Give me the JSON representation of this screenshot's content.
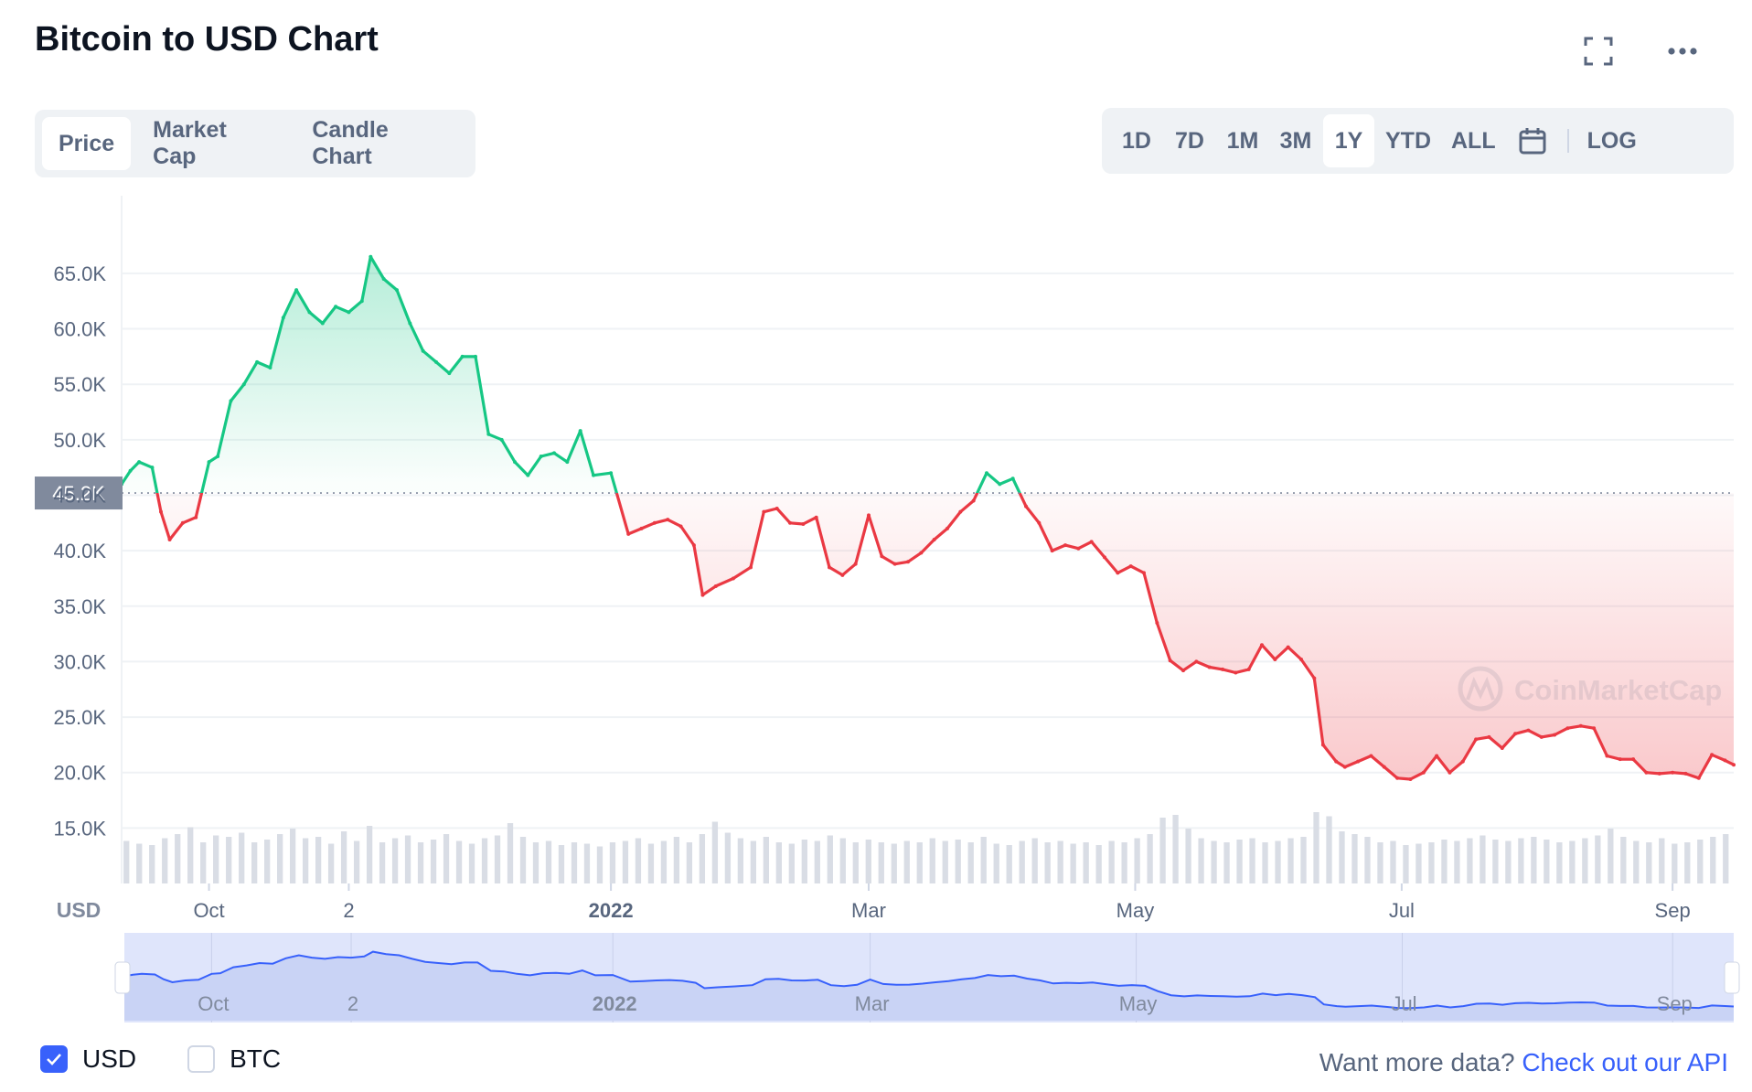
{
  "header": {
    "title": "Bitcoin to USD Chart"
  },
  "icons": {
    "fullscreen": "fullscreen-icon",
    "more": "more-icon",
    "calendar": "calendar-icon",
    "check": "checkmark-icon",
    "watermark": "coinmarketcap-logo"
  },
  "tabs": [
    {
      "label": "Price",
      "active": true
    },
    {
      "label": "Market Cap",
      "active": false
    },
    {
      "label": "Candle Chart",
      "active": false
    }
  ],
  "ranges": [
    {
      "label": "1D",
      "active": false
    },
    {
      "label": "7D",
      "active": false
    },
    {
      "label": "1M",
      "active": false
    },
    {
      "label": "3M",
      "active": false
    },
    {
      "label": "1Y",
      "active": true
    },
    {
      "label": "YTD",
      "active": false
    },
    {
      "label": "ALL",
      "active": false
    }
  ],
  "log_label": "LOG",
  "legend": {
    "usd": {
      "label": "USD",
      "checked": true
    },
    "btc": {
      "label": "BTC",
      "checked": false
    }
  },
  "footer": {
    "prompt": "Want more data?",
    "link": "Check out our API"
  },
  "watermark": "CoinMarketCap",
  "colors": {
    "up": "#16c784",
    "down": "#ea3943",
    "accent": "#3861fb",
    "baseline_badge": "#808a9d"
  },
  "chart_data": {
    "type": "line",
    "ylabel": "USD",
    "y_ticks": [
      "15.0K",
      "20.0K",
      "25.0K",
      "30.0K",
      "35.0K",
      "40.0K",
      "45.0K",
      "50.0K",
      "55.0K",
      "60.0K",
      "65.0K"
    ],
    "ylim": [
      10000,
      72000
    ],
    "x_ticks": [
      {
        "label": "Oct",
        "date": "2021-10-01",
        "bold": false
      },
      {
        "label": "2",
        "date": "2021-11-02",
        "bold": false
      },
      {
        "label": "2022",
        "date": "2022-01-01",
        "bold": true
      },
      {
        "label": "Mar",
        "date": "2022-03-01",
        "bold": false
      },
      {
        "label": "May",
        "date": "2022-05-01",
        "bold": false
      },
      {
        "label": "Jul",
        "date": "2022-07-01",
        "bold": false
      },
      {
        "label": "Sep",
        "date": "2022-09-01",
        "bold": false
      }
    ],
    "xlim": [
      "2021-09-11",
      "2022-09-15"
    ],
    "baseline": {
      "value": 45200,
      "label": "45.2K"
    },
    "grid": true,
    "series": [
      {
        "x": [
          "2021-09-11",
          "2021-09-13",
          "2021-09-15",
          "2021-09-18",
          "2021-09-20",
          "2021-09-22",
          "2021-09-25",
          "2021-09-28",
          "2021-10-01",
          "2021-10-03",
          "2021-10-06",
          "2021-10-09",
          "2021-10-12",
          "2021-10-15",
          "2021-10-18",
          "2021-10-21",
          "2021-10-24",
          "2021-10-27",
          "2021-10-30",
          "2021-11-02",
          "2021-11-05",
          "2021-11-07",
          "2021-11-10",
          "2021-11-13",
          "2021-11-16",
          "2021-11-19",
          "2021-11-22",
          "2021-11-25",
          "2021-11-28",
          "2021-12-01",
          "2021-12-04",
          "2021-12-07",
          "2021-12-10",
          "2021-12-13",
          "2021-12-16",
          "2021-12-19",
          "2021-12-22",
          "2021-12-25",
          "2021-12-28",
          "2022-01-01",
          "2022-01-05",
          "2022-01-08",
          "2022-01-11",
          "2022-01-14",
          "2022-01-17",
          "2022-01-20",
          "2022-01-22",
          "2022-01-25",
          "2022-01-29",
          "2022-02-02",
          "2022-02-05",
          "2022-02-08",
          "2022-02-11",
          "2022-02-14",
          "2022-02-17",
          "2022-02-20",
          "2022-02-23",
          "2022-02-26",
          "2022-03-01",
          "2022-03-04",
          "2022-03-07",
          "2022-03-10",
          "2022-03-13",
          "2022-03-16",
          "2022-03-19",
          "2022-03-22",
          "2022-03-25",
          "2022-03-28",
          "2022-03-31",
          "2022-04-03",
          "2022-04-06",
          "2022-04-09",
          "2022-04-12",
          "2022-04-15",
          "2022-04-18",
          "2022-04-21",
          "2022-04-24",
          "2022-04-27",
          "2022-04-30",
          "2022-05-03",
          "2022-05-06",
          "2022-05-09",
          "2022-05-12",
          "2022-05-15",
          "2022-05-18",
          "2022-05-21",
          "2022-05-24",
          "2022-05-27",
          "2022-05-30",
          "2022-06-02",
          "2022-06-05",
          "2022-06-08",
          "2022-06-11",
          "2022-06-13",
          "2022-06-16",
          "2022-06-18",
          "2022-06-21",
          "2022-06-24",
          "2022-06-27",
          "2022-06-30",
          "2022-07-03",
          "2022-07-06",
          "2022-07-09",
          "2022-07-12",
          "2022-07-15",
          "2022-07-18",
          "2022-07-21",
          "2022-07-24",
          "2022-07-27",
          "2022-07-30",
          "2022-08-02",
          "2022-08-05",
          "2022-08-08",
          "2022-08-11",
          "2022-08-14",
          "2022-08-17",
          "2022-08-20",
          "2022-08-23",
          "2022-08-26",
          "2022-08-29",
          "2022-09-01",
          "2022-09-04",
          "2022-09-07",
          "2022-09-10",
          "2022-09-13",
          "2022-09-15"
        ],
        "values": [
          46000,
          47200,
          48000,
          47500,
          43500,
          41000,
          42500,
          43000,
          48000,
          48500,
          53500,
          55000,
          57000,
          56500,
          61000,
          63500,
          61500,
          60500,
          62000,
          61500,
          62500,
          66500,
          64500,
          63500,
          60500,
          58000,
          57000,
          56000,
          57500,
          57500,
          50500,
          50000,
          48000,
          46800,
          48500,
          48800,
          48000,
          50800,
          46800,
          47000,
          41500,
          42000,
          42500,
          42800,
          42200,
          40500,
          36000,
          36800,
          37500,
          38500,
          43500,
          43800,
          42500,
          42400,
          43000,
          38500,
          37800,
          38800,
          43200,
          39500,
          38800,
          39000,
          39800,
          41000,
          42000,
          43500,
          44500,
          47000,
          46000,
          46500,
          44000,
          42500,
          40000,
          40500,
          40200,
          40800,
          39400,
          38000,
          38600,
          38000,
          33500,
          30100,
          29200,
          30000,
          29500,
          29300,
          29000,
          29300,
          31500,
          30200,
          31300,
          30200,
          28500,
          22500,
          21000,
          20500,
          21000,
          21500,
          20500,
          19500,
          19400,
          20000,
          21500,
          20000,
          21000,
          23000,
          23200,
          22200,
          23500,
          23800,
          23200,
          23400,
          24000,
          24200,
          24000,
          21500,
          21200,
          21200,
          20000,
          19900,
          20000,
          19900,
          19500,
          21600,
          21100,
          20700
        ]
      }
    ],
    "volume": [
      0.31,
      0.29,
      0.28,
      0.33,
      0.36,
      0.41,
      0.3,
      0.35,
      0.34,
      0.37,
      0.3,
      0.32,
      0.36,
      0.4,
      0.33,
      0.34,
      0.29,
      0.38,
      0.31,
      0.42,
      0.3,
      0.33,
      0.35,
      0.3,
      0.32,
      0.36,
      0.31,
      0.29,
      0.33,
      0.35,
      0.44,
      0.34,
      0.3,
      0.31,
      0.28,
      0.3,
      0.29,
      0.27,
      0.3,
      0.31,
      0.33,
      0.29,
      0.31,
      0.34,
      0.3,
      0.36,
      0.45,
      0.37,
      0.33,
      0.31,
      0.34,
      0.3,
      0.29,
      0.32,
      0.31,
      0.35,
      0.33,
      0.3,
      0.32,
      0.3,
      0.29,
      0.31,
      0.3,
      0.33,
      0.31,
      0.32,
      0.3,
      0.34,
      0.29,
      0.28,
      0.31,
      0.33,
      0.3,
      0.31,
      0.29,
      0.3,
      0.28,
      0.31,
      0.3,
      0.33,
      0.36,
      0.48,
      0.5,
      0.4,
      0.33,
      0.31,
      0.3,
      0.32,
      0.33,
      0.3,
      0.31,
      0.33,
      0.34,
      0.52,
      0.49,
      0.38,
      0.36,
      0.34,
      0.3,
      0.31,
      0.28,
      0.29,
      0.3,
      0.32,
      0.31,
      0.33,
      0.35,
      0.32,
      0.31,
      0.33,
      0.34,
      0.32,
      0.3,
      0.31,
      0.33,
      0.35,
      0.4,
      0.34,
      0.31,
      0.3,
      0.33,
      0.29,
      0.3,
      0.32,
      0.34,
      0.36
    ]
  }
}
